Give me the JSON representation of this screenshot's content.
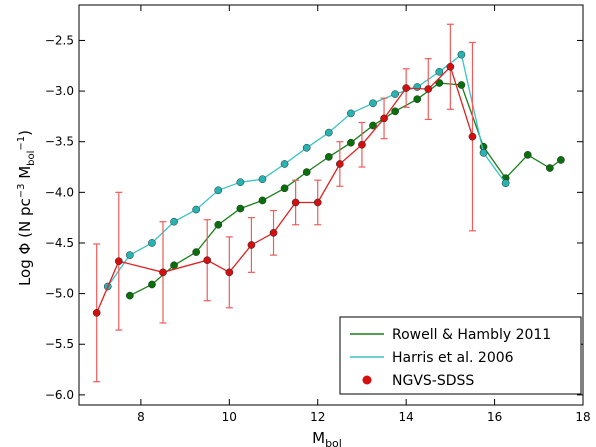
{
  "chart_data": {
    "type": "line",
    "xlabel": "M_bol",
    "xlabel_main": "M",
    "xlabel_sub": "bol",
    "ylabel": "Log Φ (N pc^-3 M_bol^-1)",
    "ylabel_pre": "Log Φ (N pc",
    "ylabel_sup1": "−3",
    "ylabel_mid": " M",
    "ylabel_sub": "bol",
    "ylabel_sup2": "−1",
    "ylabel_post": ")",
    "xlim": [
      6.6,
      18.0
    ],
    "ylim": [
      -6.1,
      -2.15
    ],
    "xticks": [
      8,
      10,
      12,
      14,
      16,
      18
    ],
    "xtick_labels": [
      "8",
      "10",
      "12",
      "14",
      "16",
      "18"
    ],
    "yticks": [
      -6.0,
      -5.5,
      -5.0,
      -4.5,
      -4.0,
      -3.5,
      -3.0,
      -2.5
    ],
    "ytick_labels": [
      "−6.0",
      "−5.5",
      "−5.0",
      "−4.5",
      "−4.0",
      "−3.5",
      "−3.0",
      "−2.5"
    ],
    "grid": false,
    "legend_position": "bottom-right",
    "series": [
      {
        "name": "Rowell & Hambly 2011",
        "color": "#1a7f1a",
        "marker_color": "#0a6e0a",
        "connected": true,
        "x": [
          7.75,
          8.25,
          8.75,
          9.25,
          9.75,
          10.25,
          10.75,
          11.25,
          11.75,
          12.25,
          12.75,
          13.25,
          13.75,
          14.25,
          14.75,
          15.25,
          15.75,
          16.25,
          16.75,
          17.25,
          17.5
        ],
        "y": [
          -5.02,
          -4.91,
          -4.72,
          -4.59,
          -4.32,
          -4.16,
          -4.08,
          -3.96,
          -3.8,
          -3.65,
          -3.51,
          -3.34,
          -3.2,
          -3.08,
          -2.92,
          -2.94,
          -3.55,
          -3.86,
          -3.63,
          -3.76,
          -3.68
        ]
      },
      {
        "name": "Harris et al. 2006",
        "color": "#3cc3c3",
        "marker_color": "#28b2b2",
        "connected": true,
        "x": [
          7.25,
          7.75,
          8.25,
          8.75,
          9.25,
          9.75,
          10.25,
          10.75,
          11.25,
          11.75,
          12.25,
          12.75,
          13.25,
          13.75,
          14.25,
          14.75,
          15.25,
          15.75,
          16.25
        ],
        "y": [
          -4.93,
          -4.62,
          -4.5,
          -4.29,
          -4.17,
          -3.98,
          -3.9,
          -3.87,
          -3.72,
          -3.56,
          -3.41,
          -3.22,
          -3.12,
          -3.03,
          -2.96,
          -2.81,
          -2.64,
          -3.61,
          -3.91
        ]
      },
      {
        "name": "NGVS-SDSS",
        "color": "#e02020",
        "marker_color": "#d40f0f",
        "errorbar_color": "#ee5c5c",
        "connected": true,
        "x": [
          7.0,
          7.5,
          8.5,
          9.5,
          10.0,
          10.5,
          11.0,
          11.5,
          12.0,
          12.5,
          13.0,
          13.5,
          14.0,
          14.5,
          15.0,
          15.5
        ],
        "y": [
          -5.19,
          -4.68,
          -4.79,
          -4.67,
          -4.79,
          -4.52,
          -4.4,
          -4.1,
          -4.1,
          -3.72,
          -3.53,
          -3.27,
          -2.97,
          -2.98,
          -2.76,
          -3.45
        ],
        "err": [
          0.68,
          0.68,
          0.5,
          0.4,
          0.35,
          0.27,
          0.22,
          0.22,
          0.22,
          0.22,
          0.22,
          0.2,
          0.19,
          0.3,
          0.42,
          0.93
        ]
      }
    ],
    "legend": [
      {
        "label": "Rowell & Hambly 2011",
        "style": "line",
        "color": "#1a7f1a"
      },
      {
        "label": "Harris et al. 2006",
        "style": "line",
        "color": "#3cc3c3"
      },
      {
        "label": "NGVS-SDSS",
        "style": "marker",
        "color": "#d40f0f"
      }
    ]
  }
}
